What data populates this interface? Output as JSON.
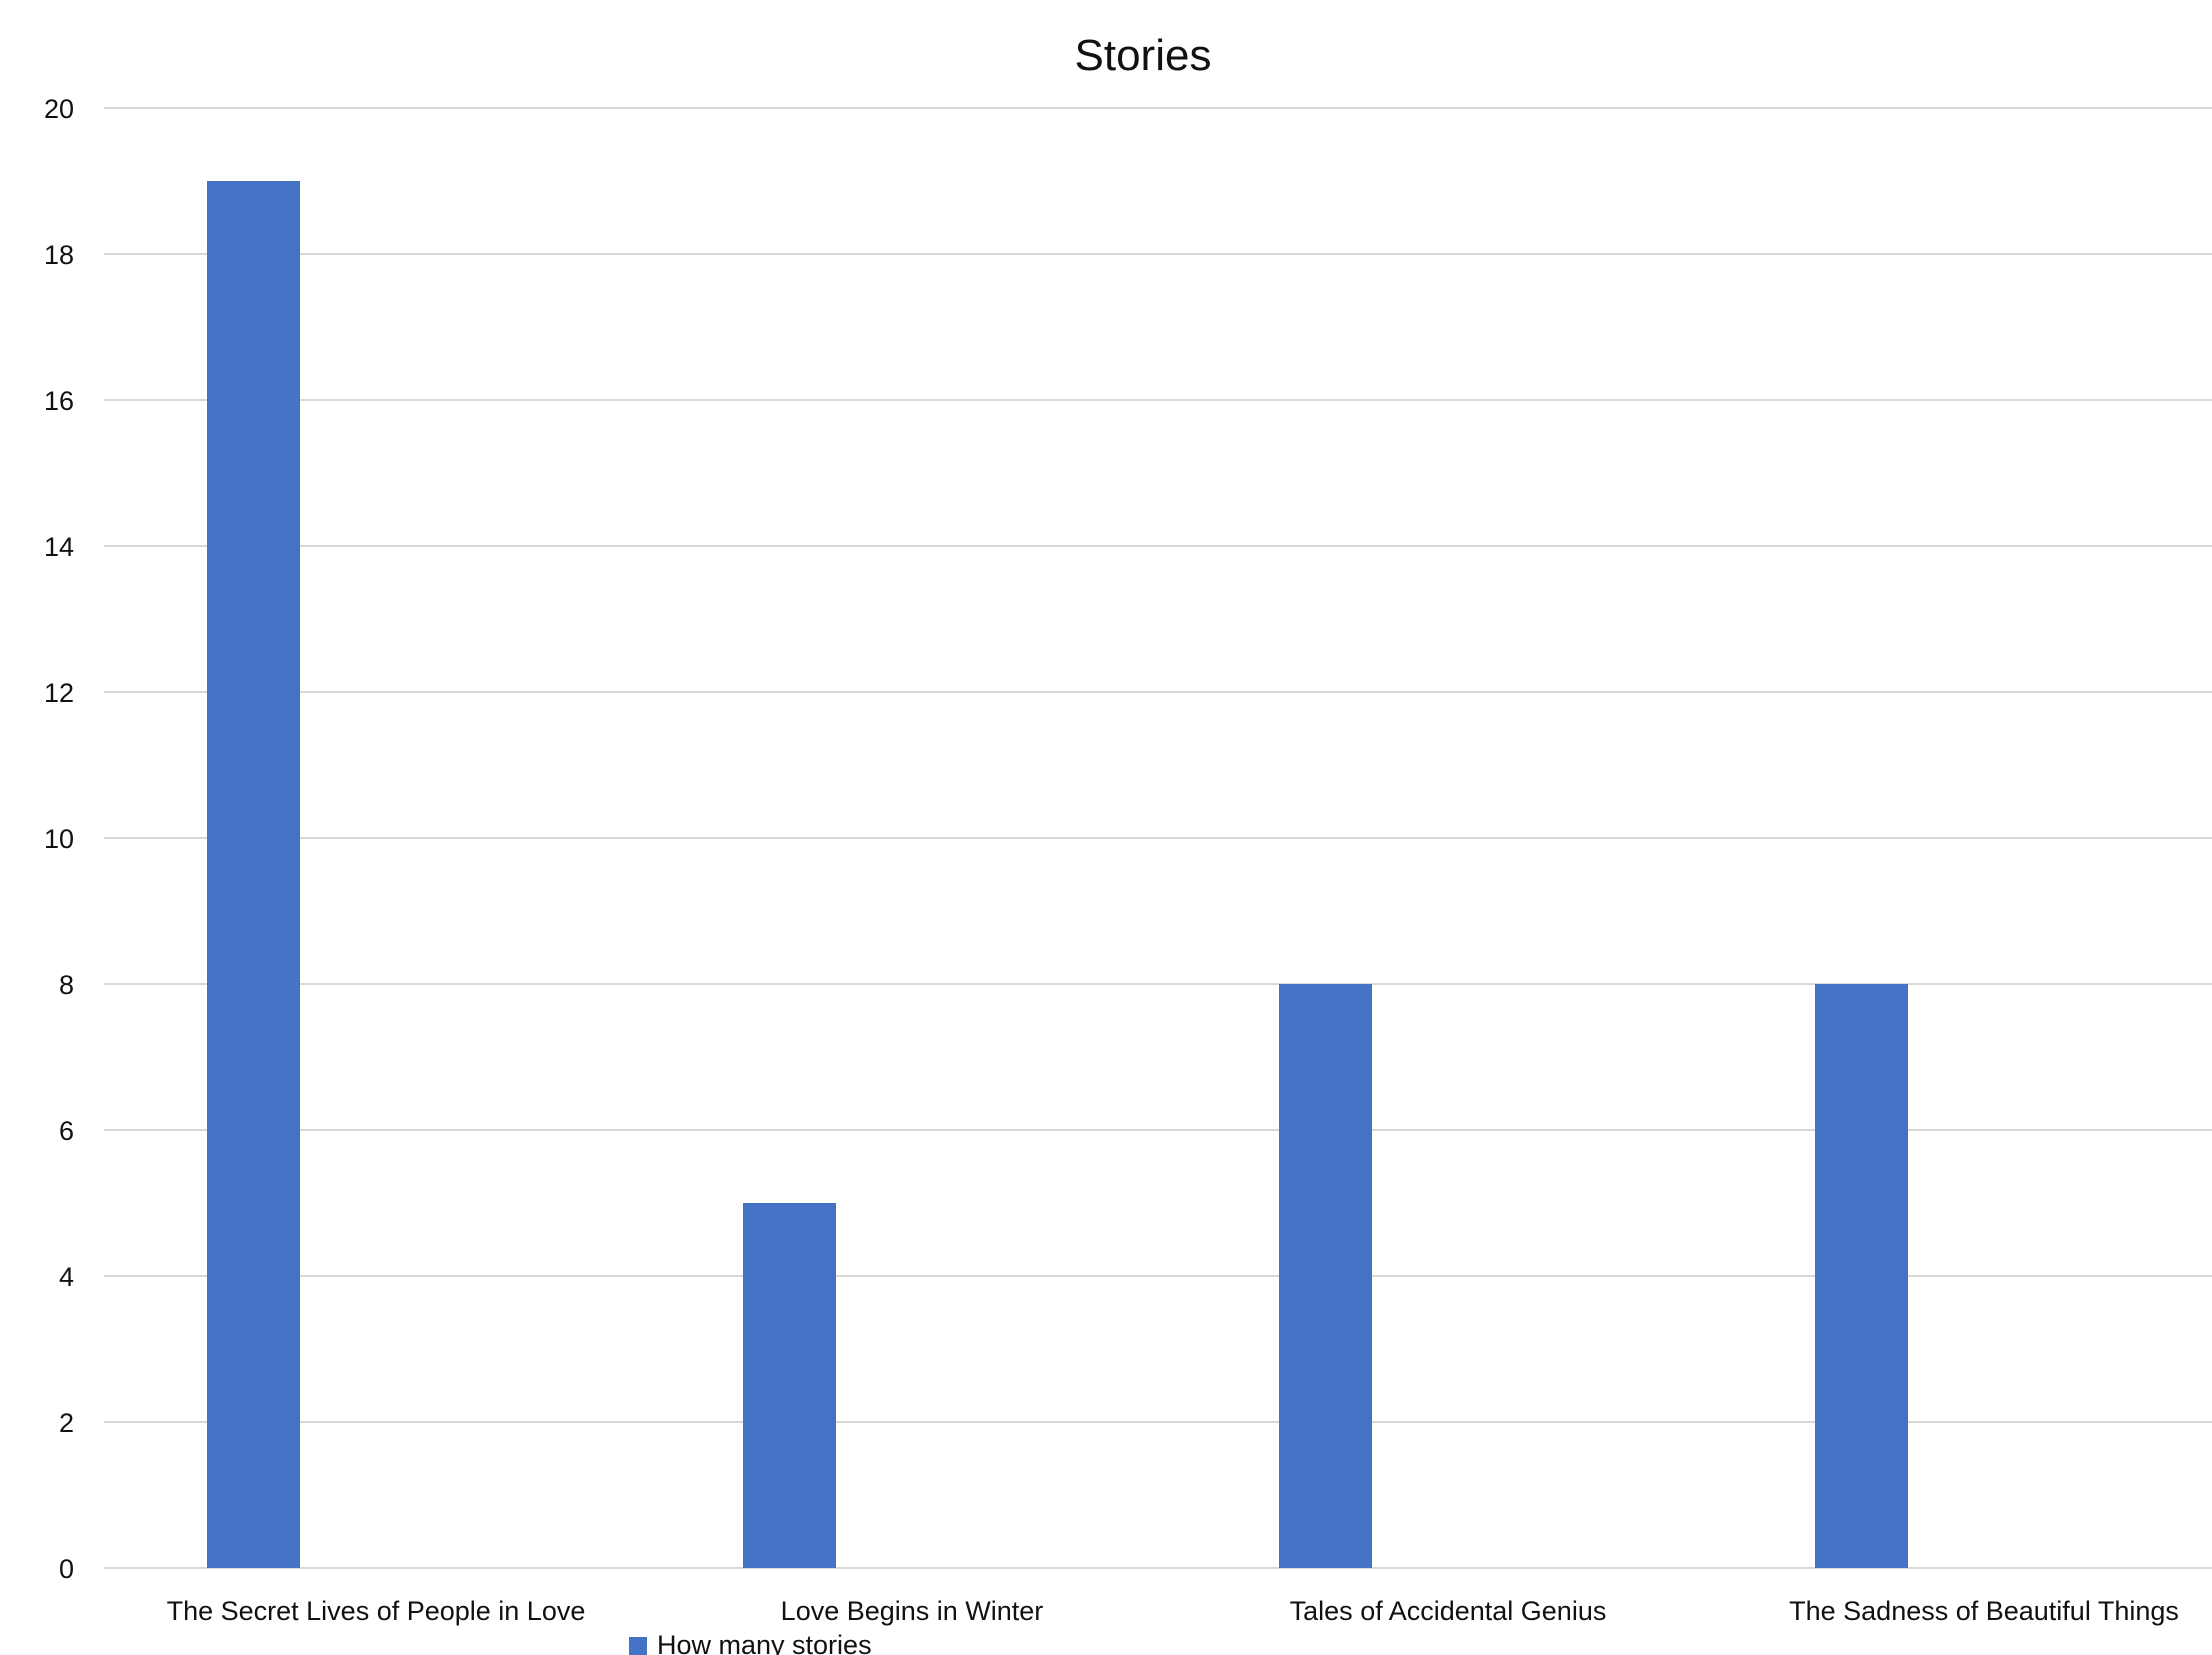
{
  "chart_data": {
    "type": "bar",
    "title": "Stories",
    "xlabel": "",
    "ylabel": "",
    "categories": [
      "The Secret Lives of People in Love",
      "Love Begins in Winter",
      "Tales of Accidental Genius",
      "The Sadness of Beautiful Things"
    ],
    "series": [
      {
        "name": "How many stories",
        "values": [
          19,
          5,
          8,
          8
        ],
        "color": "#4472c4"
      }
    ],
    "ylim": [
      0,
      20
    ],
    "yticks": [
      "0",
      "2",
      "4",
      "6",
      "8",
      "10",
      "12",
      "14",
      "16",
      "18",
      "20"
    ],
    "grid": true,
    "legend": "bottom"
  }
}
